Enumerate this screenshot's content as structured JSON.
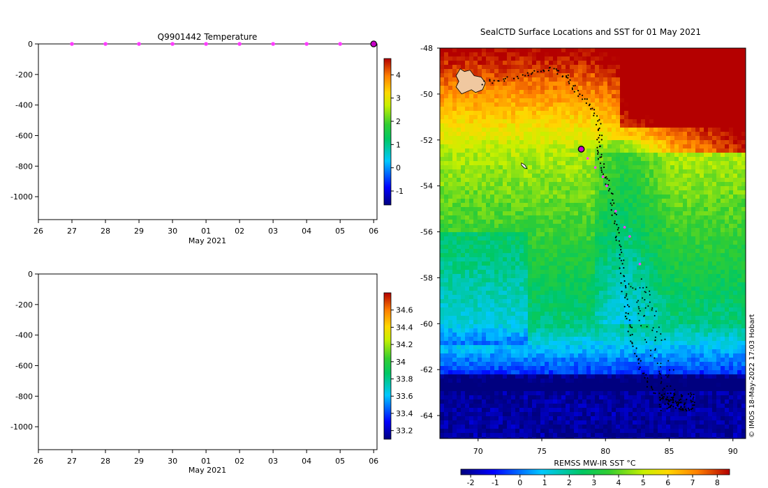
{
  "chart_data": [
    {
      "type": "heatmap",
      "title": "Q9901442  Temperature",
      "xlabel": "May 2021",
      "ylabel": "",
      "xlim": [
        26,
        36.1
      ],
      "ylim": [
        -1150,
        0
      ],
      "x_tick_labels": [
        "26",
        "27",
        "28",
        "29",
        "30",
        "01",
        "02",
        "03",
        "04",
        "05",
        "06"
      ],
      "y_ticks": [
        0,
        -200,
        -400,
        -600,
        -800,
        -1000
      ],
      "colorbar": {
        "min": -1.6,
        "max": 4.7,
        "ticks": [
          -1,
          0,
          1,
          2,
          3,
          4
        ]
      },
      "profile_marker_days": [
        27,
        28,
        29,
        30,
        31,
        32,
        33,
        34,
        35
      ],
      "last_profile_day": 36
    },
    {
      "type": "heatmap",
      "title": "",
      "xlabel": "May 2021",
      "ylabel": "",
      "xlim": [
        26,
        36.1
      ],
      "ylim": [
        -1150,
        0
      ],
      "x_tick_labels": [
        "26",
        "27",
        "28",
        "29",
        "30",
        "01",
        "02",
        "03",
        "04",
        "05",
        "06"
      ],
      "y_ticks": [
        0,
        -200,
        -400,
        -600,
        -800,
        -1000
      ],
      "colorbar": {
        "min": 33.1,
        "max": 34.8,
        "ticks": [
          33.2,
          33.4,
          33.6,
          33.8,
          34,
          34.2,
          34.4,
          34.6
        ]
      }
    },
    {
      "type": "heatmap",
      "title": "SealCTD Surface Locations and SST for 01 May 2021",
      "xlabel": "",
      "ylabel": "",
      "xlim": [
        67,
        91
      ],
      "ylim": [
        -65,
        -48
      ],
      "x_ticks": [
        70,
        75,
        80,
        85,
        90
      ],
      "y_ticks": [
        -48,
        -50,
        -52,
        -54,
        -56,
        -58,
        -60,
        -62,
        -64
      ],
      "colorbar": {
        "label": "REMSS MW-IR SST °C",
        "min": -2.4,
        "max": 8.5,
        "ticks": [
          -2,
          -1,
          0,
          1,
          2,
          3,
          4,
          5,
          6,
          7,
          8
        ]
      },
      "current_position": {
        "lon": 78.1,
        "lat": -52.4
      },
      "track_highlight_points": [
        [
          78.6,
          -52.8
        ],
        [
          79.2,
          -53.2
        ],
        [
          79.8,
          -53.6
        ],
        [
          80.1,
          -54.0
        ],
        [
          80.8,
          -55.1
        ],
        [
          81.5,
          -55.8
        ],
        [
          81.9,
          -56.2
        ],
        [
          82.7,
          -57.4
        ]
      ],
      "credit": "© IMOS 18-May-2022 17:03 Hobart"
    }
  ]
}
